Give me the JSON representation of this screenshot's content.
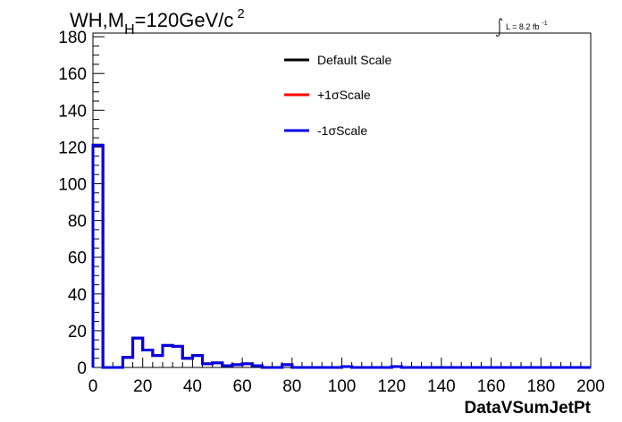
{
  "chart_data": {
    "type": "histogram-step",
    "title": "WH,M",
    "title_subscript": "H",
    "title_value": "=120GeV/c",
    "title_superscript": "2",
    "lumi_label": "L = 8.2 fb",
    "lumi_superscript": "-1",
    "xlabel": "DataVSumJetPt",
    "ylabel": "",
    "xlim": [
      0,
      200
    ],
    "ylim": [
      0,
      182
    ],
    "x_tick_labels": [
      "0",
      "20",
      "40",
      "60",
      "80",
      "100",
      "120",
      "140",
      "160",
      "180",
      "200"
    ],
    "y_tick_labels": [
      "0",
      "20",
      "40",
      "60",
      "80",
      "100",
      "120",
      "140",
      "160",
      "180"
    ],
    "grid": false,
    "legend_position": "top-center",
    "bin_width": 4,
    "series": [
      {
        "name": "Default Scale",
        "color": "#000000",
        "values": [
          121,
          0,
          0,
          5.5,
          16,
          9.5,
          6.5,
          12,
          11.5,
          5,
          6.5,
          2,
          2.5,
          1,
          1.5,
          2,
          1,
          0,
          0,
          1.5,
          0,
          0,
          0,
          0,
          0,
          0.5,
          0,
          0,
          0,
          0,
          0.5,
          0,
          0,
          0,
          0,
          0,
          0,
          0,
          0,
          0,
          0,
          0,
          0,
          0,
          0,
          0,
          0,
          0,
          0,
          0
        ]
      },
      {
        "name": "+1σScale",
        "color": "#ff0000",
        "values": [
          121,
          0,
          0,
          5.5,
          16,
          9.5,
          6.5,
          12,
          11.5,
          5,
          6.5,
          2,
          2.5,
          1,
          1.5,
          2,
          1,
          0,
          0,
          1.5,
          0,
          0,
          0,
          0,
          0,
          0.5,
          0,
          0,
          0,
          0,
          0.5,
          0,
          0,
          0,
          0,
          0,
          0,
          0,
          0,
          0,
          0,
          0,
          0,
          0,
          0,
          0,
          0,
          0,
          0,
          0
        ]
      },
      {
        "name": "-1σScale",
        "color": "#0000e6",
        "values": [
          121,
          0,
          0,
          5.5,
          16,
          9.5,
          6.5,
          12,
          11.5,
          5,
          6.5,
          2,
          2.5,
          1,
          1.5,
          2,
          1,
          0,
          0,
          1.5,
          0,
          0,
          0,
          0,
          0,
          0.5,
          0,
          0,
          0,
          0,
          0.5,
          0,
          0,
          0,
          0,
          0,
          0,
          0,
          0,
          0,
          0,
          0,
          0,
          0,
          0,
          0,
          0,
          0,
          0,
          0
        ]
      }
    ]
  }
}
